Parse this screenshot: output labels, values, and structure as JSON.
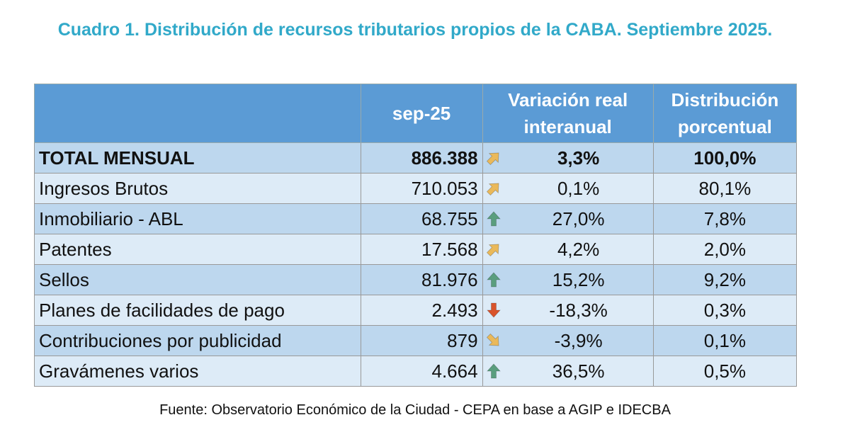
{
  "title": "Cuadro 1. Distribución de recursos tributarios propios de la CABA. Septiembre 2025.",
  "colors": {
    "up": "#5a9e7e",
    "slight_up": "#eab95a",
    "slight_down": "#eab95a",
    "down": "#d9532b",
    "header": "#5b9bd5"
  },
  "headers": [
    "",
    "sep-25",
    "Variación real interanual",
    "Distribución porcentual"
  ],
  "rows": [
    {
      "name": "TOTAL MENSUAL",
      "value": "886.388",
      "trend": "slight-up",
      "var": "3,3%",
      "dist": "100,0%"
    },
    {
      "name": "Ingresos Brutos",
      "value": "710.053",
      "trend": "slight-up",
      "var": "0,1%",
      "dist": "80,1%"
    },
    {
      "name": "Inmobiliario - ABL",
      "value": "68.755",
      "trend": "up",
      "var": "27,0%",
      "dist": "7,8%"
    },
    {
      "name": "Patentes",
      "value": "17.568",
      "trend": "slight-up",
      "var": "4,2%",
      "dist": "2,0%"
    },
    {
      "name": "Sellos",
      "value": "81.976",
      "trend": "up",
      "var": "15,2%",
      "dist": "9,2%"
    },
    {
      "name": "Planes de facilidades de pago",
      "value": "2.493",
      "trend": "down",
      "var": "-18,3%",
      "dist": "0,3%"
    },
    {
      "name": "Contribuciones por publicidad",
      "value": "879",
      "trend": "slight-down",
      "var": "-3,9%",
      "dist": "0,1%"
    },
    {
      "name": "Gravámenes varios",
      "value": "4.664",
      "trend": "up",
      "var": "36,5%",
      "dist": "0,5%"
    }
  ],
  "source": "Fuente: Observatorio Económico de la Ciudad - CEPA en base a AGIP e IDECBA"
}
